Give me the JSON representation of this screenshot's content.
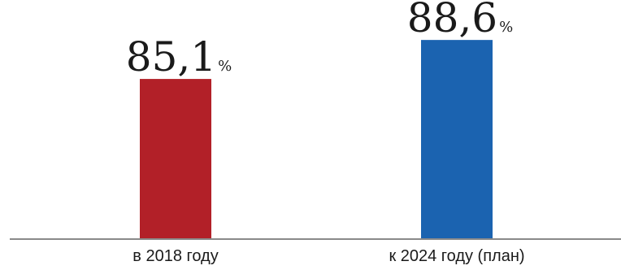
{
  "chart_data": {
    "type": "bar",
    "categories": [
      "в 2018 году",
      "к 2024 году (план)"
    ],
    "values": [
      85.1,
      88.6
    ],
    "value_labels": [
      "85,1",
      "88,6"
    ],
    "unit": "%",
    "colors": [
      "#b22028",
      "#1b63b0"
    ],
    "title": "",
    "xlabel": "",
    "ylabel": "",
    "grid": false
  }
}
